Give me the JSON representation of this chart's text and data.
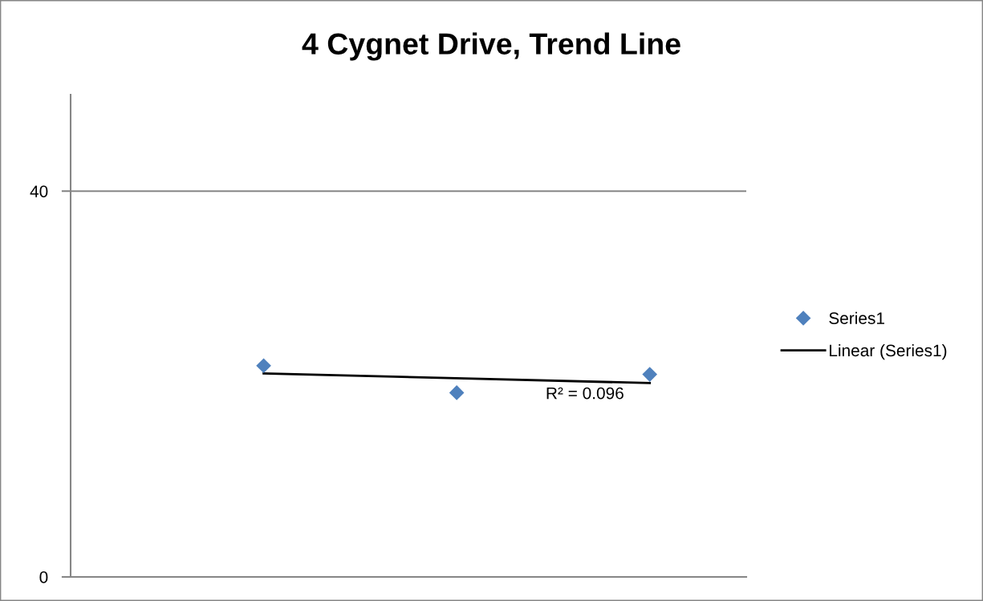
{
  "chart_data": {
    "type": "scatter",
    "title": "4 Cygnet Drive, Trend Line",
    "categories": [
      null,
      null,
      null
    ],
    "series": [
      {
        "name": "Series1",
        "color": "#4f81bd",
        "marker": "diamond",
        "values": [
          21.9,
          19.1,
          21.0
        ]
      },
      {
        "name": "Linear (Series1)",
        "type": "line",
        "color": "#000000",
        "marker": "none",
        "line_style": "solid",
        "values": [
          21.1,
          20.6,
          20.1
        ]
      }
    ],
    "ylim": [
      0,
      50
    ],
    "yticks": [
      0,
      40
    ],
    "grid": "y",
    "legend": "right",
    "tick_labels": "y",
    "annotations": [
      "R² = 0.096"
    ]
  }
}
